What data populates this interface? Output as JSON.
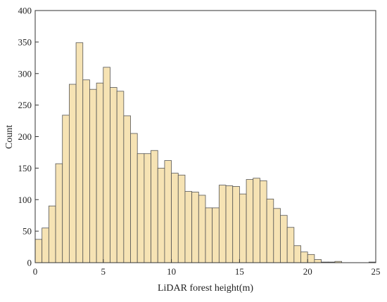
{
  "chart_data": {
    "type": "bar",
    "title": "",
    "xlabel": "LiDAR forest height(m)",
    "ylabel": "Count",
    "xlim": [
      0,
      25
    ],
    "ylim": [
      0,
      400
    ],
    "xticks": [
      "0",
      "5",
      "10",
      "15",
      "20",
      "25"
    ],
    "yticks": [
      "0",
      "50",
      "100",
      "150",
      "200",
      "250",
      "300",
      "350",
      "400"
    ],
    "bin_width": 0.5,
    "bin_starts": [
      0,
      0.5,
      1,
      1.5,
      2,
      2.5,
      3,
      3.5,
      4,
      4.5,
      5,
      5.5,
      6,
      6.5,
      7,
      7.5,
      8,
      8.5,
      9,
      9.5,
      10,
      10.5,
      11,
      11.5,
      12,
      12.5,
      13,
      13.5,
      14,
      14.5,
      15,
      15.5,
      16,
      16.5,
      17,
      17.5,
      18,
      18.5,
      19,
      19.5,
      20,
      20.5,
      21,
      21.5,
      22,
      22.5,
      23,
      23.5,
      24,
      24.5
    ],
    "values": [
      37,
      55,
      90,
      157,
      234,
      283,
      349,
      290,
      275,
      285,
      310,
      278,
      272,
      233,
      205,
      173,
      173,
      178,
      150,
      162,
      142,
      139,
      113,
      112,
      107,
      87,
      87,
      123,
      122,
      121,
      109,
      132,
      134,
      130,
      101,
      86,
      75,
      56,
      27,
      17,
      13,
      5,
      1,
      1,
      2,
      0,
      0,
      0,
      0,
      1
    ],
    "grid": false,
    "legend": "none",
    "colors": {
      "bar_fill": "#F6E3B4",
      "bar_edge": "#555555"
    }
  }
}
